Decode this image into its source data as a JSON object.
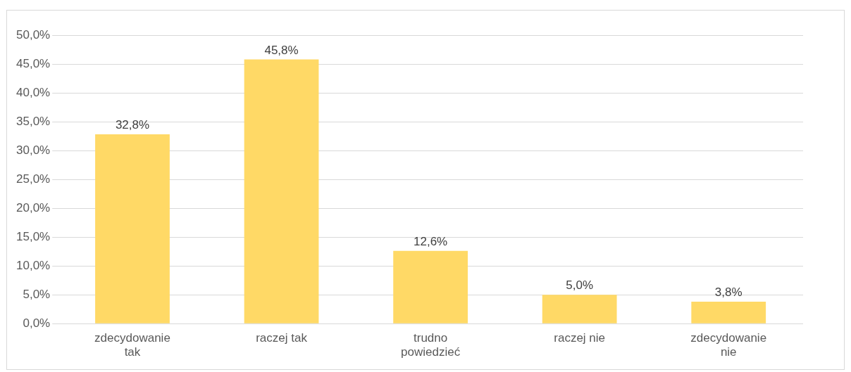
{
  "chart_data": {
    "type": "bar",
    "categories": [
      "zdecydowanie tak",
      "raczej tak",
      "trudno powiedzieć",
      "raczej nie",
      "zdecydowanie nie"
    ],
    "values": [
      32.8,
      45.8,
      12.6,
      5.0,
      3.8
    ],
    "value_labels": [
      "32,8%",
      "45,8%",
      "12,6%",
      "5,0%",
      "3,8%"
    ],
    "color": "#ffd966",
    "ylim": [
      0,
      50
    ],
    "yticks": [
      {
        "value": 0,
        "label": "0,0%"
      },
      {
        "value": 5,
        "label": "5,0%"
      },
      {
        "value": 10,
        "label": "10,0%"
      },
      {
        "value": 15,
        "label": "15,0%"
      },
      {
        "value": 20,
        "label": "20,0%"
      },
      {
        "value": 25,
        "label": "25,0%"
      },
      {
        "value": 30,
        "label": "30,0%"
      },
      {
        "value": 35,
        "label": "35,0%"
      },
      {
        "value": 40,
        "label": "40,0%"
      },
      {
        "value": 45,
        "label": "45,0%"
      },
      {
        "value": 50,
        "label": "50,0%"
      }
    ],
    "grid": "y",
    "legend": false
  }
}
